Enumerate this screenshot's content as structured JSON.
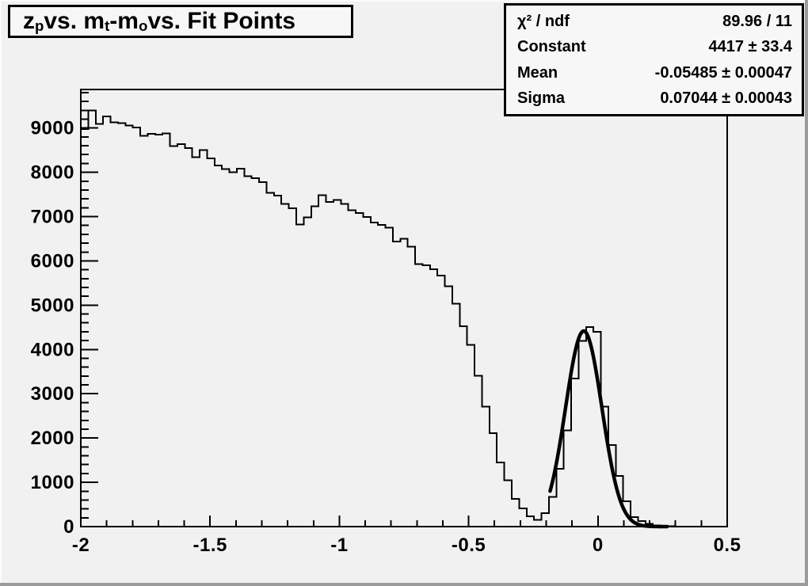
{
  "canvas": {
    "background": "#f1f1f1",
    "bevel_light": "#fbfbfb",
    "bevel_dark": "#9b9b9b",
    "box_fill": "#f7f7f7",
    "line_color": "#000000"
  },
  "title_box": {
    "plain_text": "z_p vs. m_t-m_o vs. Fit Points",
    "segments": [
      {
        "t": "z"
      },
      {
        "s": "p"
      },
      {
        "t": " vs. m"
      },
      {
        "s": "t"
      },
      {
        "t": "-m"
      },
      {
        "s": "o"
      },
      {
        "t": " vs. Fit Points"
      }
    ]
  },
  "stats_box": {
    "rows": [
      {
        "label": "χ² / ndf",
        "value": "89.96 / 11"
      },
      {
        "label": "Constant",
        "value": "4417 ± 33.4"
      },
      {
        "label": "Mean",
        "value": "-0.05485 ± 0.00047"
      },
      {
        "label": "Sigma",
        "value": "0.07044 ± 0.00043"
      }
    ]
  },
  "chart_data": {
    "type": "bar",
    "subtype": "histogram-with-gaussian-fit",
    "title": "z_p vs. m_t-m_o vs. Fit Points",
    "xlabel": "",
    "ylabel": "",
    "grid": false,
    "legend": false,
    "x_axis": {
      "min": -2.0,
      "max": 0.5,
      "major_ticks": [
        -2,
        -1.5,
        -1,
        -0.5,
        0,
        0.5
      ],
      "major_tick_labels": [
        "-2",
        "-1.5",
        "-1",
        "-0.5",
        "0",
        "0.5"
      ],
      "minor_tick_step": 0.1
    },
    "y_axis": {
      "min": 0,
      "max": 9870,
      "major_ticks": [
        0,
        1000,
        2000,
        3000,
        4000,
        5000,
        6000,
        7000,
        8000,
        9000
      ],
      "major_tick_labels": [
        "0",
        "1000",
        "2000",
        "3000",
        "4000",
        "5000",
        "6000",
        "7000",
        "8000",
        "9000"
      ],
      "minor_tick_step": 200
    },
    "histogram": {
      "bin_start": -2.0,
      "bin_width": 0.0287356,
      "values": [
        8980,
        9400,
        9090,
        9260,
        9130,
        9110,
        9060,
        9015,
        8820,
        8870,
        8850,
        8880,
        8595,
        8640,
        8550,
        8345,
        8505,
        8315,
        8150,
        8075,
        8005,
        8080,
        7910,
        7870,
        7780,
        7540,
        7470,
        7290,
        7190,
        6825,
        6985,
        7230,
        7480,
        7330,
        7380,
        7290,
        7140,
        7080,
        6990,
        6870,
        6810,
        6750,
        6440,
        6500,
        6320,
        5930,
        5905,
        5810,
        5665,
        5425,
        5030,
        4520,
        4100,
        3405,
        2710,
        2110,
        1445,
        1050,
        630,
        415,
        232,
        152,
        303,
        667,
        1303,
        2172,
        3343,
        4192,
        4505,
        4400,
        2712,
        1843,
        1141,
        576,
        212,
        126,
        61,
        30,
        15,
        8,
        4,
        3,
        2,
        2,
        1,
        1,
        1
      ]
    },
    "fit": {
      "model": "gaussian",
      "chi2": 89.96,
      "ndf": 11,
      "constant": 4417,
      "constant_err": 33.4,
      "mean": -0.05485,
      "mean_err": 0.00047,
      "sigma": 0.07044,
      "sigma_err": 0.00043,
      "draw_range": [
        -0.185,
        0.27
      ],
      "line_width": 4.5
    }
  }
}
